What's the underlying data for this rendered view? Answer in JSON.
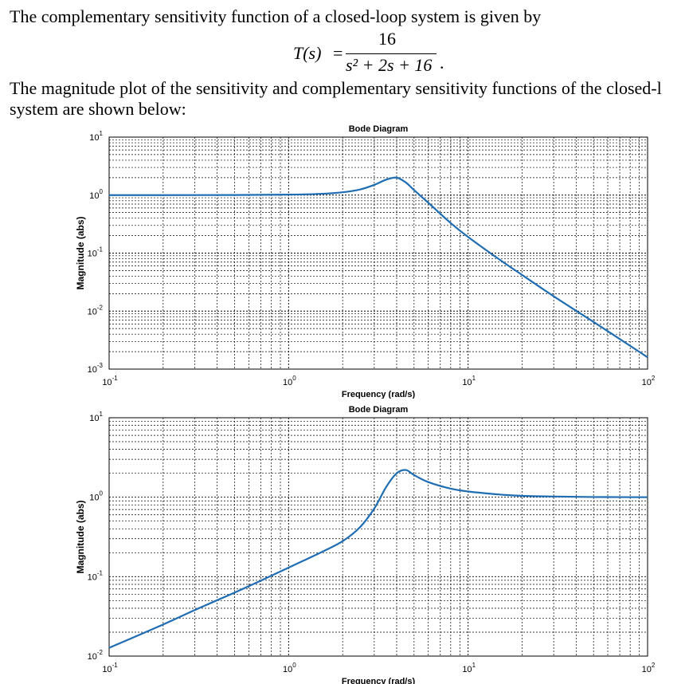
{
  "text": {
    "line1": "The complementary sensitivity function of a closed-loop system is given by",
    "line2": "The magnitude plot of the sensitivity and complementary sensitivity functions of the closed-l",
    "line3": "system are shown below:"
  },
  "formula": {
    "lhs": "T(s)",
    "equals": "=",
    "numerator": "16",
    "denominator": "s² + 2s + 16",
    "period": "."
  },
  "chart_data": [
    {
      "type": "line",
      "title": "Bode Diagram",
      "xlabel": "Frequency (rad/s)",
      "ylabel": "Magnitude (abs)",
      "xscale": "log",
      "yscale": "log",
      "xlim": [
        0.1,
        100
      ],
      "ylim": [
        0.001,
        10
      ],
      "xticks": [
        {
          "base": "10",
          "exp": "-1"
        },
        {
          "base": "10",
          "exp": "0"
        },
        {
          "base": "10",
          "exp": "1"
        },
        {
          "base": "10",
          "exp": "2"
        }
      ],
      "yticks": [
        {
          "base": "10",
          "exp": "1"
        },
        {
          "base": "10",
          "exp": "0"
        },
        {
          "base": "10",
          "exp": "-1"
        },
        {
          "base": "10",
          "exp": "-2"
        },
        {
          "base": "10",
          "exp": "-3"
        }
      ],
      "grid": true,
      "line_color": "#1f6db3",
      "series": [
        {
          "x": [
            0.1,
            0.2,
            0.5,
            1,
            1.5,
            2,
            2.5,
            3,
            3.5,
            4,
            4.5,
            5,
            6,
            8,
            10,
            15,
            20,
            30,
            50,
            70,
            100
          ],
          "y": [
            1.0,
            1.001,
            1.005,
            1.02,
            1.05,
            1.12,
            1.25,
            1.5,
            1.85,
            2.0,
            1.65,
            1.22,
            0.74,
            0.33,
            0.19,
            0.077,
            0.042,
            0.018,
            0.0065,
            0.0033,
            0.0016
          ]
        }
      ]
    },
    {
      "type": "line",
      "title": "Bode Diagram",
      "xlabel": "Frequency (rad/s)",
      "ylabel": "Magnitude (abs)",
      "xscale": "log",
      "yscale": "log",
      "xlim": [
        0.1,
        100
      ],
      "ylim": [
        0.01,
        10
      ],
      "xticks": [
        {
          "base": "10",
          "exp": "-1"
        },
        {
          "base": "10",
          "exp": "0"
        },
        {
          "base": "10",
          "exp": "1"
        },
        {
          "base": "10",
          "exp": "2"
        }
      ],
      "yticks": [
        {
          "base": "10",
          "exp": "1"
        },
        {
          "base": "10",
          "exp": "0"
        },
        {
          "base": "10",
          "exp": "-1"
        },
        {
          "base": "10",
          "exp": "-2"
        }
      ],
      "grid": true,
      "line_color": "#1f6db3",
      "series": [
        {
          "x": [
            0.1,
            0.2,
            0.3,
            0.5,
            0.7,
            1,
            1.5,
            2,
            2.5,
            3,
            3.5,
            4,
            4.5,
            5,
            6,
            8,
            10,
            15,
            20,
            30,
            50,
            100
          ],
          "y": [
            0.0127,
            0.025,
            0.038,
            0.063,
            0.089,
            0.13,
            0.2,
            0.28,
            0.42,
            0.72,
            1.35,
            2.0,
            2.2,
            1.9,
            1.55,
            1.28,
            1.18,
            1.08,
            1.04,
            1.02,
            1.005,
            1.0
          ]
        }
      ]
    }
  ]
}
